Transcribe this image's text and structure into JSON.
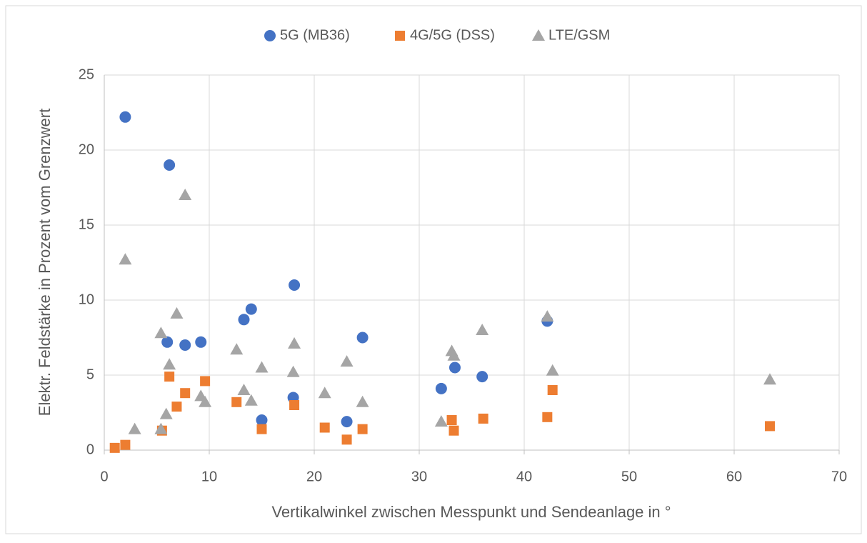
{
  "chart_data": {
    "type": "scatter",
    "xlabel": "Vertikalwinkel zwischen Messpunkt und Sendeanlage in °",
    "ylabel": "Elektr. Feldstärke in Prozent vom Grenzwert",
    "xlim": [
      0,
      70
    ],
    "xticks": [
      0,
      10,
      20,
      30,
      40,
      50,
      60,
      70
    ],
    "ylim": [
      0,
      25
    ],
    "yticks": [
      0,
      5,
      10,
      15,
      20,
      25
    ],
    "grid": true,
    "legend": "top",
    "series": [
      {
        "name": "5G (MB36)",
        "color": "#4472c4",
        "marker": "circle",
        "x": [
          2.0,
          6.2,
          6.0,
          7.7,
          9.2,
          13.3,
          14.0,
          18.1,
          18.0,
          15.0,
          23.1,
          24.6,
          32.1,
          33.4,
          36.0,
          42.2
        ],
        "values": [
          22.2,
          19.0,
          7.2,
          7.0,
          7.2,
          8.7,
          9.4,
          11.0,
          3.5,
          2.0,
          1.9,
          7.5,
          4.1,
          5.5,
          4.9,
          8.6
        ]
      },
      {
        "name": "4G/5G (DSS)",
        "color": "#ed7d31",
        "marker": "square",
        "x": [
          1.0,
          2.0,
          5.5,
          6.2,
          6.9,
          7.7,
          9.6,
          12.6,
          15.0,
          18.1,
          21.0,
          23.1,
          24.6,
          33.1,
          33.3,
          36.1,
          42.2,
          42.7,
          63.4
        ],
        "values": [
          0.15,
          0.35,
          1.3,
          4.9,
          2.9,
          3.8,
          4.6,
          3.2,
          1.4,
          3.0,
          1.5,
          0.7,
          1.4,
          2.0,
          1.3,
          2.1,
          2.2,
          4.0,
          1.6
        ]
      },
      {
        "name": "LTE/GSM",
        "color": "#a5a5a5",
        "marker": "triangle",
        "x": [
          2.9,
          2.0,
          5.4,
          5.9,
          6.2,
          5.4,
          6.9,
          7.7,
          9.2,
          9.6,
          12.6,
          13.3,
          14.0,
          15.0,
          18.0,
          18.1,
          21.0,
          23.1,
          24.6,
          32.1,
          33.1,
          33.3,
          36.0,
          42.2,
          42.7,
          63.4
        ],
        "values": [
          1.4,
          12.7,
          1.4,
          2.4,
          5.7,
          7.8,
          9.1,
          17.0,
          3.6,
          3.2,
          6.7,
          4.0,
          3.3,
          5.5,
          5.2,
          7.1,
          3.8,
          5.9,
          3.2,
          1.9,
          6.6,
          6.3,
          8.0,
          8.9,
          5.3,
          4.7
        ]
      }
    ]
  }
}
